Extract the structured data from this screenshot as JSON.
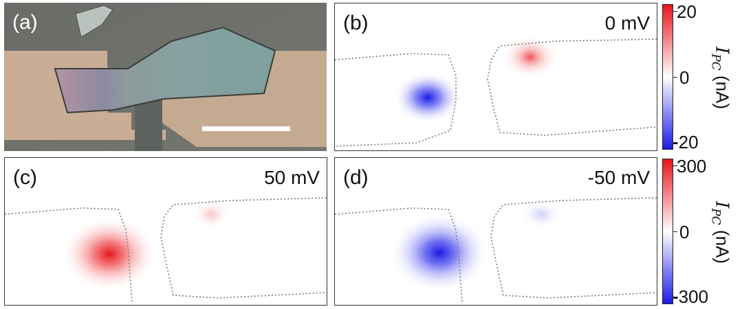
{
  "panels": {
    "a": {
      "label": "(a)"
    },
    "b": {
      "label": "(b)",
      "bias": "0 mV"
    },
    "c": {
      "label": "(c)",
      "bias": "50 mV"
    },
    "d": {
      "label": "(d)",
      "bias": "-50 mV"
    }
  },
  "colorbars": {
    "top": {
      "ticks": [
        "20",
        "0",
        "-20"
      ],
      "symbol": "I",
      "subscript": "PC",
      "unit": "(nA)"
    },
    "bottom": {
      "ticks": [
        "300",
        "0",
        "-300"
      ],
      "symbol": "I",
      "subscript": "PC",
      "unit": "(nA)"
    }
  },
  "colors": {
    "positive": "#e8151b",
    "negative": "#1a1ae6",
    "zero": "#ffffff"
  }
}
